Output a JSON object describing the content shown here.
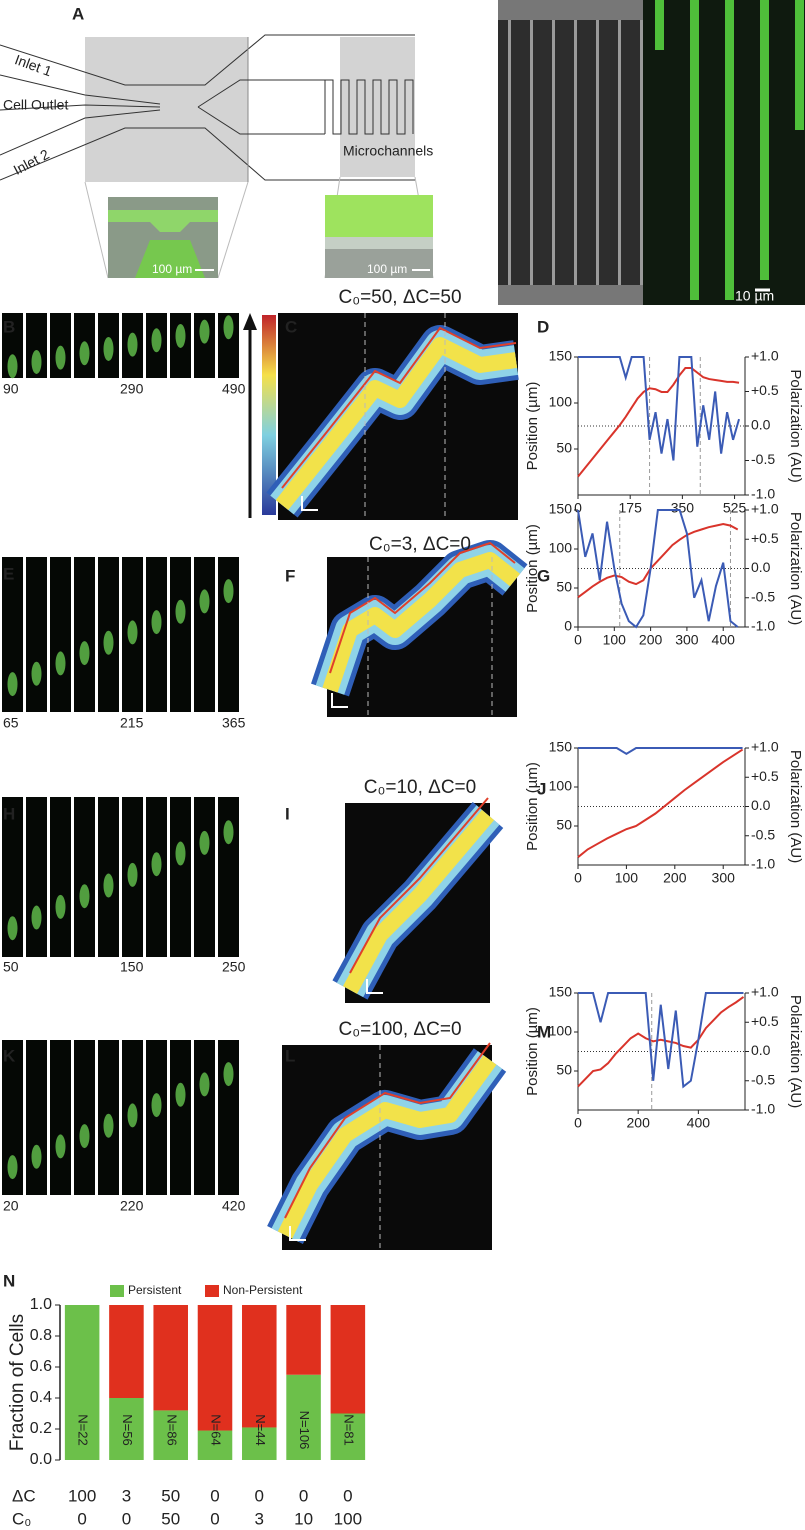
{
  "panel_labels": [
    "A",
    "B",
    "C",
    "D",
    "E",
    "F",
    "G",
    "H",
    "I",
    "J",
    "K",
    "L",
    "M",
    "N"
  ],
  "panel_a": {
    "inlet_1": "Inlet 1",
    "inlet_2": "Inlet 2",
    "cell_outlet": "Cell Outlet",
    "microchannels": "Microchannels",
    "scale_left": "100 µm",
    "scale_middle": "100 µm",
    "scale_right": "10 µm"
  },
  "kymograph_titles": [
    "C₀=50, ΔC=50",
    "C₀=3, ΔC=0",
    "C₀=10, ΔC=0",
    "C₀=100, ΔC=0"
  ],
  "strip_times": [
    [
      90,
      290,
      490
    ],
    [
      65,
      215,
      365
    ],
    [
      50,
      150,
      250
    ],
    [
      20,
      220,
      420
    ]
  ],
  "chart_data": [
    {
      "type": "line",
      "x": [
        0,
        20,
        40,
        60,
        80,
        100,
        120,
        140,
        160,
        180,
        200,
        220,
        240,
        260,
        280,
        300,
        320,
        340,
        360,
        380,
        400,
        420,
        440,
        460,
        480,
        500,
        520,
        540
      ],
      "xlim": [
        0,
        560
      ],
      "xticks": [
        0,
        175,
        350,
        525
      ],
      "ylim": [
        0,
        150
      ],
      "yticks": [
        50,
        100,
        150
      ],
      "y2lim": [
        -1,
        1
      ],
      "y2ticks": [
        {
          "value": 1,
          "label": "+1.0"
        },
        {
          "value": 0.5,
          "label": "+0.5"
        },
        {
          "value": 0,
          "label": "0.0"
        },
        {
          "value": -0.5,
          "label": "-0.5"
        },
        {
          "value": -1,
          "label": "-1.0"
        }
      ],
      "ylabel": "Position (µm)",
      "y2label": "Polarization (AU)",
      "vlines": [
        240,
        410
      ],
      "hline_y2": 0,
      "series": [
        {
          "color": "#d9342b",
          "values": [
            20,
            28,
            36,
            44,
            52,
            60,
            68,
            76,
            85,
            95,
            105,
            112,
            116,
            115,
            112,
            112,
            120,
            130,
            138,
            138,
            133,
            128,
            126,
            125,
            124,
            123,
            123,
            122
          ]
        },
        {
          "color": "#3b5bb5",
          "axis": "y2",
          "values": [
            1,
            1,
            1,
            1,
            1,
            1,
            1,
            1,
            0.7,
            1,
            1,
            1,
            -0.2,
            0.2,
            -0.4,
            0.1,
            -0.5,
            1,
            1,
            1,
            -0.3,
            0.3,
            -0.2,
            0.5,
            -0.4,
            0.2,
            -0.2,
            0.1
          ]
        }
      ]
    },
    {
      "type": "line",
      "x": [
        0,
        20,
        40,
        60,
        80,
        100,
        120,
        140,
        160,
        180,
        200,
        220,
        240,
        260,
        280,
        300,
        320,
        340,
        360,
        380,
        400,
        420,
        440
      ],
      "xlim": [
        0,
        460
      ],
      "xticks": [
        0,
        100,
        200,
        300,
        400
      ],
      "ylim": [
        0,
        150
      ],
      "yticks": [
        0,
        50,
        100,
        150
      ],
      "y2lim": [
        -1,
        1
      ],
      "y2ticks": [
        {
          "value": 1,
          "label": "+1.0"
        },
        {
          "value": 0.5,
          "label": "+0.5"
        },
        {
          "value": 0,
          "label": "0.0"
        },
        {
          "value": -0.5,
          "label": "-0.5"
        },
        {
          "value": -1,
          "label": "-1.0"
        }
      ],
      "ylabel": "Position (µm)",
      "y2label": "Polarization (AU)",
      "vlines": [
        115,
        420
      ],
      "hline_y2": 0,
      "series": [
        {
          "color": "#d9342b",
          "values": [
            38,
            45,
            52,
            58,
            63,
            66,
            64,
            58,
            55,
            60,
            75,
            85,
            95,
            105,
            112,
            118,
            122,
            125,
            128,
            130,
            132,
            130,
            125
          ]
        },
        {
          "color": "#3b5bb5",
          "axis": "y2",
          "values": [
            1,
            0.2,
            0.6,
            -0.2,
            0.8,
            0,
            -0.6,
            -0.9,
            -1,
            -0.8,
            0,
            1,
            1,
            1,
            1,
            0.6,
            -0.5,
            -0.2,
            -0.9,
            -0.3,
            0.1,
            -0.9,
            -1
          ]
        }
      ]
    },
    {
      "type": "line",
      "x": [
        0,
        20,
        40,
        60,
        80,
        100,
        120,
        140,
        160,
        180,
        200,
        220,
        240,
        260,
        280,
        300,
        320,
        340
      ],
      "xlim": [
        0,
        345
      ],
      "xticks": [
        0,
        100,
        200,
        300
      ],
      "ylim": [
        0,
        150
      ],
      "yticks": [
        50,
        100,
        150
      ],
      "y2lim": [
        -1,
        1
      ],
      "y2ticks": [
        {
          "value": 1,
          "label": "+1.0"
        },
        {
          "value": 0.5,
          "label": "+0.5"
        },
        {
          "value": 0,
          "label": "0.0"
        },
        {
          "value": -0.5,
          "label": "-0.5"
        },
        {
          "value": -1,
          "label": "-1.0"
        }
      ],
      "ylabel": "Position (µm)",
      "y2label": "Polarization (AU)",
      "vlines": [],
      "hline_y2": 0,
      "series": [
        {
          "color": "#d9342b",
          "values": [
            10,
            20,
            27,
            34,
            40,
            46,
            50,
            58,
            66,
            76,
            86,
            96,
            105,
            114,
            123,
            132,
            140,
            148
          ]
        },
        {
          "color": "#3b5bb5",
          "axis": "y2",
          "values": [
            1,
            1,
            1,
            1,
            1,
            0.9,
            1,
            1,
            1,
            1,
            1,
            1,
            1,
            1,
            1,
            1,
            1,
            1
          ]
        }
      ]
    },
    {
      "type": "line",
      "x": [
        0,
        25,
        50,
        75,
        100,
        125,
        150,
        175,
        200,
        225,
        250,
        275,
        300,
        325,
        350,
        375,
        400,
        425,
        450,
        475,
        500,
        525,
        550
      ],
      "xlim": [
        0,
        555
      ],
      "xticks": [
        0,
        200,
        400
      ],
      "ylim": [
        0,
        150
      ],
      "yticks": [
        50,
        100,
        150
      ],
      "y2lim": [
        -1,
        1
      ],
      "y2ticks": [
        {
          "value": 1,
          "label": "+1.0"
        },
        {
          "value": 0.5,
          "label": "+0.5"
        },
        {
          "value": 0,
          "label": "0.0"
        },
        {
          "value": -0.5,
          "label": "-0.5"
        },
        {
          "value": -1,
          "label": "-1.0"
        }
      ],
      "ylabel": "Position (µm)",
      "y2label": "Polarization (AU)",
      "vlines": [
        245
      ],
      "hline_y2": 0,
      "series": [
        {
          "color": "#d9342b",
          "values": [
            30,
            40,
            50,
            52,
            60,
            72,
            82,
            92,
            98,
            92,
            88,
            90,
            88,
            86,
            82,
            80,
            90,
            105,
            115,
            125,
            132,
            138,
            145
          ]
        },
        {
          "color": "#3b5bb5",
          "axis": "y2",
          "values": [
            1,
            1,
            1,
            0.5,
            1,
            1,
            1,
            1,
            1,
            1,
            -0.5,
            0.8,
            -0.3,
            0.7,
            -0.6,
            -0.5,
            0.2,
            1,
            1,
            1,
            1,
            1,
            1
          ]
        }
      ]
    },
    {
      "type": "bar",
      "stacked": true,
      "ylabel": "Fraction of Cells",
      "categories": [
        100,
        3,
        50,
        0,
        0,
        0,
        0
      ],
      "c0": [
        0,
        0,
        50,
        0,
        3,
        10,
        100
      ],
      "row_labels": [
        "ΔC",
        "C₀"
      ],
      "ylim": [
        0,
        1
      ],
      "yticks": [
        {
          "value": 0,
          "label": "0.0"
        },
        {
          "value": 0.2,
          "label": "0.2"
        },
        {
          "value": 0.4,
          "label": "0.4"
        },
        {
          "value": 0.6,
          "label": "0.6"
        },
        {
          "value": 0.8,
          "label": "0.8"
        },
        {
          "value": 1,
          "label": "1.0"
        }
      ],
      "annotations": [
        "N=22",
        "N=56",
        "N=86",
        "N=64",
        "N=44",
        "N=106",
        "N=81"
      ],
      "series": [
        {
          "name": "Persistent",
          "color": "#6cc04a",
          "values": [
            1,
            0.4,
            0.32,
            0.19,
            0.21,
            0.55,
            0.3
          ]
        },
        {
          "name": "Non-Persistent",
          "color": "#e0301e",
          "values": [
            0,
            0.6,
            0.68,
            0.81,
            0.79,
            0.45,
            0.7
          ]
        }
      ]
    }
  ]
}
